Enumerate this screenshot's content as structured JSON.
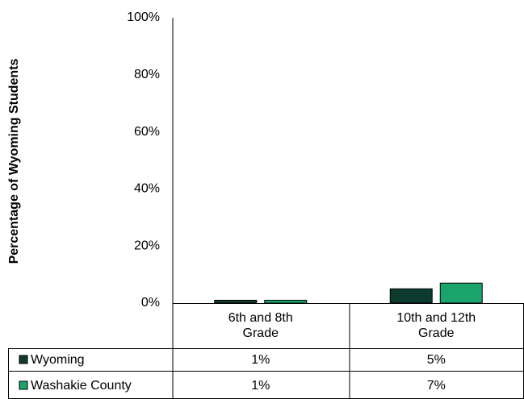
{
  "chart_data": {
    "type": "bar",
    "y_label": "Percentage of Wyoming Students",
    "categories": [
      "6th and 8th Grade",
      "10th and 12th Grade"
    ],
    "series": [
      {
        "name": "Wyoming",
        "color": "#0d3b2e",
        "values": [
          1,
          5
        ],
        "value_labels": [
          "1%",
          "5%"
        ]
      },
      {
        "name": "Washakie County",
        "color": "#1aa36a",
        "values": [
          1,
          7
        ],
        "value_labels": [
          "1%",
          "7%"
        ]
      }
    ],
    "ylim": [
      0,
      100
    ],
    "yticks": [
      {
        "value": 0,
        "label": "0%"
      },
      {
        "value": 20,
        "label": "20%"
      },
      {
        "value": 40,
        "label": "40%"
      },
      {
        "value": 60,
        "label": "60%"
      },
      {
        "value": 80,
        "label": "80%"
      },
      {
        "value": 100,
        "label": "100%"
      }
    ],
    "grid": false
  }
}
